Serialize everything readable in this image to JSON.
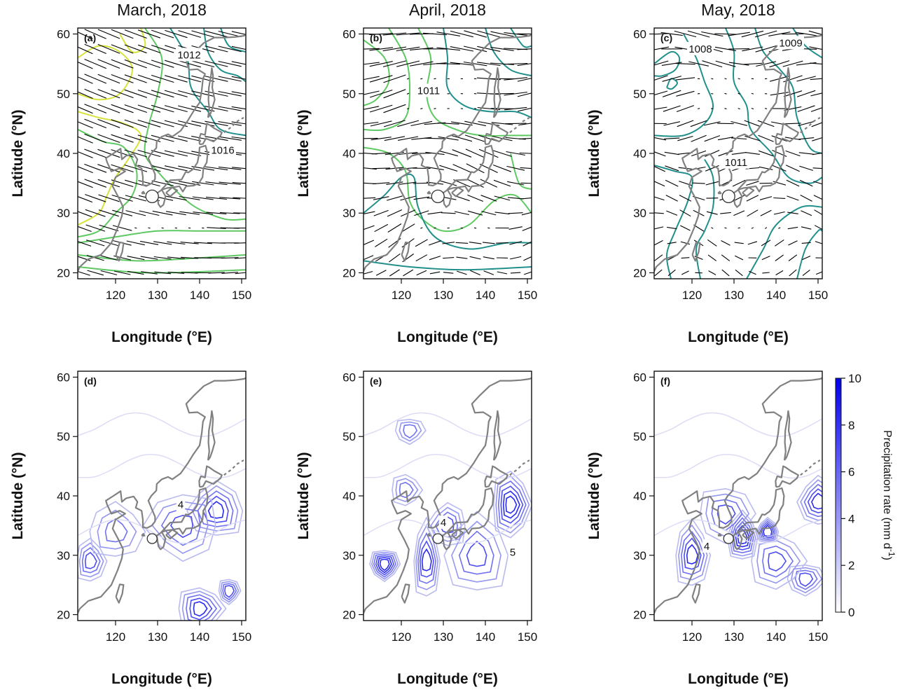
{
  "colors": {
    "slp_low": "#21908c",
    "slp_mid": "#5ec962",
    "slp_high": "#d7e33a",
    "precip": "#2a2ae6",
    "coast": "#808080",
    "wind": "#000000"
  },
  "panels": [
    {
      "id": "a",
      "label": "(a)",
      "title": "March, 2018",
      "row": 0,
      "col": 0,
      "contour_labels": [
        {
          "text": "1012",
          "lon": 137.5,
          "lat": 56.5
        },
        {
          "text": "1016",
          "lon": 145.5,
          "lat": 40.5
        }
      ]
    },
    {
      "id": "b",
      "label": "(b)",
      "title": "April, 2018",
      "row": 0,
      "col": 1,
      "contour_labels": [
        {
          "text": "1011",
          "lon": 126.5,
          "lat": 50.5
        }
      ]
    },
    {
      "id": "c",
      "label": "(c)",
      "title": "May, 2018",
      "row": 0,
      "col": 2,
      "contour_labels": [
        {
          "text": "1008",
          "lon": 122.0,
          "lat": 57.5
        },
        {
          "text": "1009",
          "lon": 143.5,
          "lat": 58.5
        },
        {
          "text": "1011",
          "lon": 130.5,
          "lat": 38.5
        }
      ]
    },
    {
      "id": "d",
      "label": "(d)",
      "title": "",
      "row": 1,
      "col": 0,
      "contour_labels": [
        {
          "text": "4",
          "lon": 135.5,
          "lat": 38.5
        }
      ]
    },
    {
      "id": "e",
      "label": "(e)",
      "title": "",
      "row": 1,
      "col": 1,
      "contour_labels": [
        {
          "text": "4",
          "lon": 130.0,
          "lat": 35.5
        },
        {
          "text": "5",
          "lon": 146.5,
          "lat": 30.5
        }
      ]
    },
    {
      "id": "f",
      "label": "(f)",
      "title": "",
      "row": 1,
      "col": 2,
      "contour_labels": [
        {
          "text": "4",
          "lon": 123.5,
          "lat": 31.5
        }
      ]
    }
  ],
  "axes": {
    "xlabel": "Longitude (°E)",
    "ylabel": "Latitude (°N)",
    "xticks": [
      120,
      130,
      140,
      150
    ],
    "yticks": [
      20,
      30,
      40,
      50,
      60
    ],
    "xlim": [
      111,
      151
    ],
    "ylim": [
      19,
      61
    ]
  },
  "site": {
    "lon": 128.7,
    "lat": 32.8
  },
  "colorbar": {
    "label": "Precipitation rate (mm d-1)",
    "label_main": "Precipitation rate (mm d",
    "label_sup": "-1",
    "label_close": ")",
    "ticks": [
      0,
      2,
      4,
      6,
      8,
      10
    ],
    "range": [
      0,
      10
    ]
  }
}
